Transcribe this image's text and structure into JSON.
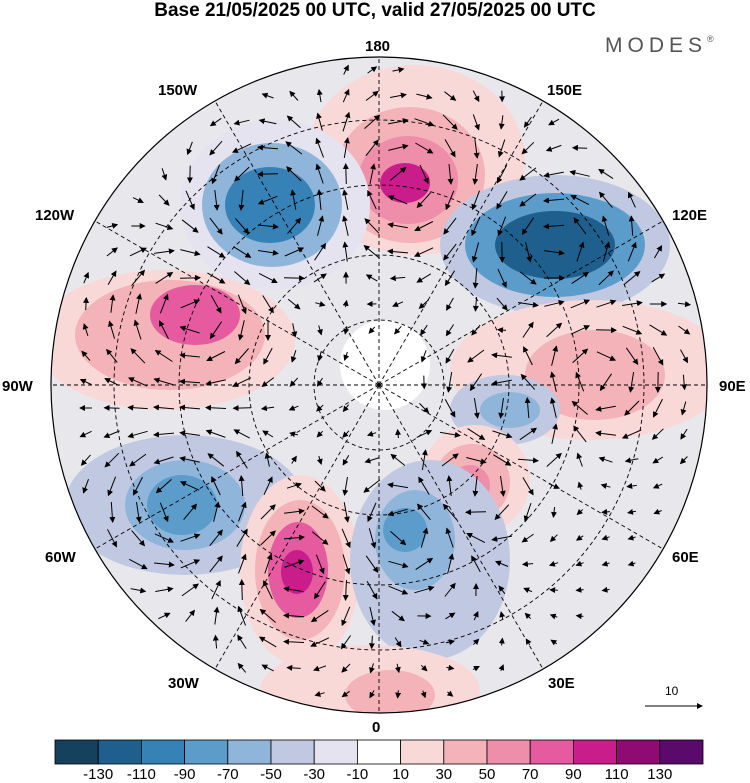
{
  "title": "Base 21/05/2025 00 UTC, valid 27/05/2025 00 UTC",
  "brand": "MODES",
  "brand_mark": "®",
  "longitude_labels": {
    "n180": "180",
    "w150": "150W",
    "e150": "150E",
    "w120": "120W",
    "e120": "120E",
    "w90": "90W",
    "e90": "90E",
    "w60": "60W",
    "e60": "60E",
    "w30": "30W",
    "e30": "30E",
    "s0": "0"
  },
  "reference_vector": {
    "value": "10",
    "icon": "arrow-right-icon"
  },
  "colorbar": {
    "colors": [
      "#15405e",
      "#1f5f8d",
      "#3682b7",
      "#5c9ccb",
      "#8fb5da",
      "#c0c9e1",
      "#e6e3f0",
      "#ffffff",
      "#f9d8d8",
      "#f3b3b8",
      "#ee8eaa",
      "#e65aa0",
      "#c91d8b",
      "#8f0a73",
      "#5a0a6a"
    ],
    "labels": [
      "-130",
      "-110",
      "-90",
      "-70",
      "-50",
      "-30",
      "-10",
      "10",
      "30",
      "50",
      "70",
      "90",
      "110",
      "130"
    ]
  },
  "anomalies": [
    {
      "id": "hi-180-150E",
      "value": 95
    },
    {
      "id": "lo-150W",
      "value": -85
    },
    {
      "id": "lo-120E",
      "value": -100
    },
    {
      "id": "hi-110W",
      "value": 80
    },
    {
      "id": "hi-90E",
      "value": 60
    },
    {
      "id": "lo-80E",
      "value": -45
    },
    {
      "id": "hi-40E",
      "value": 70
    },
    {
      "id": "lo-60W",
      "value": -70
    },
    {
      "id": "hi-30W",
      "value": 105
    },
    {
      "id": "lo-10E",
      "value": -60
    },
    {
      "id": "hi-0",
      "value": 35
    }
  ]
}
